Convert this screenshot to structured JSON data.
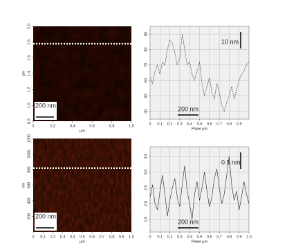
{
  "chart_data": [
    {
      "type": "image",
      "xlabel": "µm",
      "ylabel": "µm",
      "xlim": [
        0,
        1
      ],
      "xticks": [
        0,
        0.2,
        0.4,
        0.6,
        0.8,
        {
          "value": 1,
          "label": "1.0"
        }
      ],
      "ylim": [
        0.8,
        2
      ],
      "yticks": [
        0.8,
        {
          "value": 1,
          "label": "1.0"
        },
        1.2,
        1.4,
        1.6,
        1.8,
        {
          "value": 2,
          "label": "2.0"
        }
      ],
      "line_position": 1.78,
      "scale_label": "200 nm",
      "colors": [
        "#3a0c02",
        "#f8e0c0"
      ]
    },
    {
      "type": "line",
      "xlabel": "Plane µm",
      "grid": true,
      "xlim": [
        0,
        1
      ],
      "xticks": [
        0,
        0.1,
        0.2,
        0.3,
        0.4,
        0.5,
        0.6,
        0.7,
        0.8,
        0.9
      ],
      "ylim": [
        35,
        95
      ],
      "yticks": [
        40,
        50,
        60,
        70,
        80,
        90
      ],
      "scale_labels": [
        "10 nm",
        "200 nm"
      ],
      "x": [
        0,
        0.025,
        0.05,
        0.075,
        0.1,
        0.125,
        0.15,
        0.175,
        0.2,
        0.225,
        0.25,
        0.275,
        0.3,
        0.325,
        0.35,
        0.375,
        0.4,
        0.425,
        0.45,
        0.475,
        0.5,
        0.525,
        0.55,
        0.575,
        0.6,
        0.625,
        0.65,
        0.675,
        0.7,
        0.725,
        0.75,
        0.775,
        0.8,
        0.825,
        0.85,
        0.875,
        0.9,
        0.925,
        0.95,
        0.975,
        1
      ],
      "series": [
        {
          "color": "#333333",
          "values": [
            62,
            58,
            66,
            70,
            64,
            72,
            70,
            80,
            86,
            84,
            78,
            70,
            74,
            90,
            80,
            70,
            72,
            64,
            60,
            66,
            72,
            58,
            50,
            56,
            62,
            52,
            48,
            58,
            52,
            44,
            40,
            46,
            50,
            56,
            48,
            54,
            60,
            64,
            66,
            70,
            72
          ]
        }
      ]
    },
    {
      "type": "image",
      "xlabel": "µm",
      "ylabel": "nm",
      "xlim": [
        0,
        1
      ],
      "xticks": [
        0,
        0.1,
        0.2,
        0.3,
        0.4,
        0.5,
        0.6,
        0.7,
        0.8,
        0.9,
        {
          "value": 1,
          "label": "1.0"
        }
      ],
      "ylim": [
        0,
        1200
      ],
      "yticks": [
        200,
        400,
        600,
        800,
        1000,
        1200
      ],
      "line_position": 820,
      "scale_label": "200 nm",
      "colors": [
        "#6a1e08",
        "#f4d0b0"
      ]
    },
    {
      "type": "line",
      "xlabel": "Plane µm",
      "grid": true,
      "xlim": [
        0,
        1
      ],
      "xticks": [
        0,
        0.1,
        0.2,
        0.3,
        0.4,
        0.5,
        0.6,
        0.7,
        0.8,
        0.9,
        {
          "value": 1,
          "label": "1.0"
        }
      ],
      "ylim": [
        1.1,
        3.8
      ],
      "yticks": [
        1.5,
        {
          "value": 2,
          "label": "2.0"
        },
        2.5,
        {
          "value": 3,
          "label": "3.0"
        },
        3.5
      ],
      "scale_labels": [
        "0.5 nm",
        "200 nm"
      ],
      "x": [
        0,
        0.025,
        0.05,
        0.075,
        0.1,
        0.125,
        0.15,
        0.175,
        0.2,
        0.225,
        0.25,
        0.275,
        0.3,
        0.325,
        0.35,
        0.375,
        0.4,
        0.425,
        0.45,
        0.475,
        0.5,
        0.525,
        0.55,
        0.575,
        0.6,
        0.625,
        0.65,
        0.675,
        0.7,
        0.725,
        0.75,
        0.775,
        0.8,
        0.825,
        0.85,
        0.875,
        0.9,
        0.925,
        0.95,
        0.975,
        1
      ],
      "series": [
        {
          "color": "#222222",
          "values": [
            2.2,
            2.6,
            2,
            1.8,
            2.4,
            2.9,
            2.3,
            1.6,
            2.1,
            2.5,
            2.8,
            2.2,
            1.9,
            2.6,
            3.2,
            2.4,
            2,
            1.5,
            2.3,
            2.7,
            2.1,
            2.5,
            3,
            2.4,
            1.9,
            2.2,
            2.8,
            3.1,
            2.5,
            2,
            2.3,
            2.9,
            3.5,
            2.6,
            2.1,
            2.4,
            1.8,
            2.2,
            2.7,
            2.3,
            2
          ]
        }
      ]
    }
  ]
}
